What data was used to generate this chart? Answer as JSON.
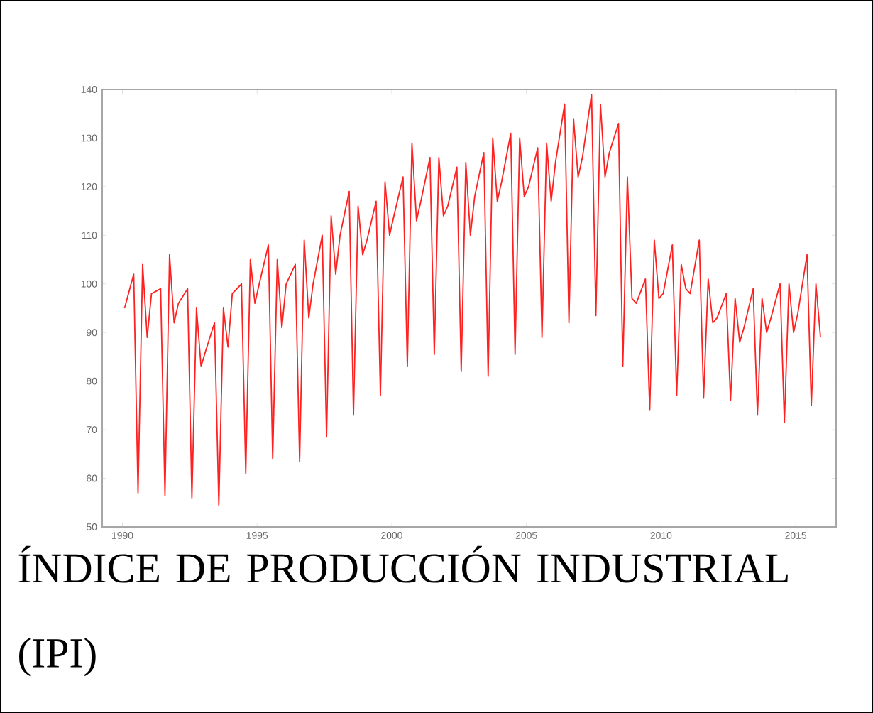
{
  "chart_data": {
    "type": "line",
    "title": "ÍNDICE DE PRODUCCIÓN INDUSTRIAL (IPI)",
    "x": [
      "1990-02",
      "1990-06",
      "1990-08",
      "1990-10",
      "1990-12",
      "1991-02",
      "1991-06",
      "1991-08",
      "1991-10",
      "1991-12",
      "1992-02",
      "1992-06",
      "1992-08",
      "1992-10",
      "1992-12",
      "1993-02",
      "1993-06",
      "1993-08",
      "1993-10",
      "1993-12",
      "1994-02",
      "1994-06",
      "1994-08",
      "1994-10",
      "1994-12",
      "1995-02",
      "1995-06",
      "1995-08",
      "1995-10",
      "1995-12",
      "1996-02",
      "1996-06",
      "1996-08",
      "1996-10",
      "1996-12",
      "1997-02",
      "1997-06",
      "1997-08",
      "1997-10",
      "1997-12",
      "1998-02",
      "1998-06",
      "1998-08",
      "1998-10",
      "1998-12",
      "1999-02",
      "1999-06",
      "1999-08",
      "1999-10",
      "1999-12",
      "2000-02",
      "2000-06",
      "2000-08",
      "2000-10",
      "2000-12",
      "2001-02",
      "2001-06",
      "2001-08",
      "2001-10",
      "2001-12",
      "2002-02",
      "2002-06",
      "2002-08",
      "2002-10",
      "2002-12",
      "2003-02",
      "2003-06",
      "2003-08",
      "2003-10",
      "2003-12",
      "2004-02",
      "2004-06",
      "2004-08",
      "2004-10",
      "2004-12",
      "2005-02",
      "2005-06",
      "2005-08",
      "2005-10",
      "2005-12",
      "2006-02",
      "2006-06",
      "2006-08",
      "2006-10",
      "2006-12",
      "2007-02",
      "2007-06",
      "2007-08",
      "2007-10",
      "2007-12",
      "2008-02",
      "2008-06",
      "2008-08",
      "2008-10",
      "2008-12",
      "2009-02",
      "2009-06",
      "2009-08",
      "2009-10",
      "2009-12",
      "2010-02",
      "2010-06",
      "2010-08",
      "2010-10",
      "2010-12",
      "2011-02",
      "2011-06",
      "2011-08",
      "2011-10",
      "2011-12",
      "2012-02",
      "2012-06",
      "2012-08",
      "2012-10",
      "2012-12",
      "2013-02",
      "2013-06",
      "2013-08",
      "2013-10",
      "2013-12",
      "2014-02",
      "2014-06",
      "2014-08",
      "2014-10",
      "2014-12",
      "2015-02",
      "2015-06",
      "2015-08",
      "2015-10",
      "2015-12"
    ],
    "series": [
      {
        "color": "#ff2020",
        "values": [
          95,
          102,
          57,
          104,
          89,
          98,
          99,
          56.5,
          106,
          92,
          96,
          99,
          56,
          95,
          83,
          86,
          92,
          54.5,
          95,
          87,
          98,
          100,
          61,
          105,
          96,
          100,
          108,
          64,
          105,
          91,
          100,
          104,
          63.5,
          109,
          93,
          100,
          110,
          68.5,
          114,
          102,
          110,
          119,
          73,
          116,
          106,
          109,
          117,
          77,
          121,
          110,
          114,
          122,
          83,
          129,
          113,
          117,
          126,
          85.5,
          126,
          114,
          116,
          124,
          82,
          125,
          110,
          118,
          127,
          81,
          130,
          117,
          121,
          131,
          85.5,
          130,
          118,
          120,
          128,
          89,
          129,
          117,
          125,
          137,
          92,
          134,
          122,
          126,
          139,
          93.5,
          137,
          122,
          127,
          133,
          83,
          122,
          97,
          96,
          101,
          74,
          109,
          97,
          98,
          108,
          77,
          104,
          99,
          98,
          109,
          76.5,
          101,
          92,
          93,
          98,
          76,
          97,
          88,
          91,
          99,
          73,
          97,
          90,
          93,
          100,
          71.5,
          100,
          90,
          94,
          106,
          75,
          100,
          89
        ]
      }
    ],
    "xlim": [
      "1989-04",
      "2016-07"
    ],
    "xticks": [
      {
        "value": "1990",
        "label": "1990"
      },
      {
        "value": "1995",
        "label": "1995"
      },
      {
        "value": "2000",
        "label": "2000"
      },
      {
        "value": "2005",
        "label": "2005"
      },
      {
        "value": "2010",
        "label": "2010"
      },
      {
        "value": "2015",
        "label": "2015"
      }
    ],
    "ylim": [
      50,
      140
    ],
    "yticks": [
      50,
      60,
      70,
      80,
      90,
      100,
      110,
      120,
      130,
      140
    ],
    "grid": false
  }
}
